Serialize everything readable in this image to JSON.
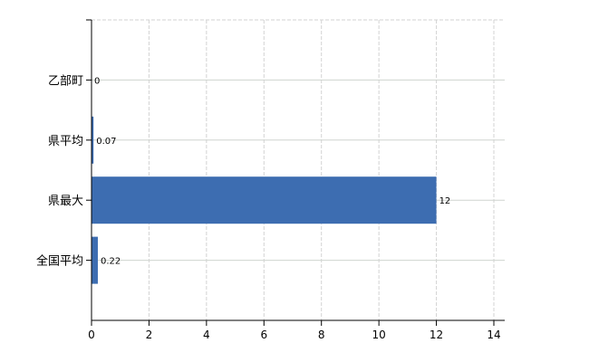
{
  "chart_data": {
    "type": "bar",
    "orientation": "horizontal",
    "categories": [
      "乙部町",
      "県平均",
      "県最大",
      "全国平均"
    ],
    "values": [
      0,
      0.07,
      12,
      0.22
    ],
    "data_labels": [
      "0",
      "0.07",
      "12",
      "0.22"
    ],
    "x_ticks": [
      "0",
      "2",
      "4",
      "6",
      "8",
      "10",
      "12",
      "14"
    ],
    "xlim": [
      0,
      14
    ],
    "title": "",
    "xlabel": "",
    "ylabel": "",
    "grid": true,
    "bar_color": "#3d6db1"
  }
}
